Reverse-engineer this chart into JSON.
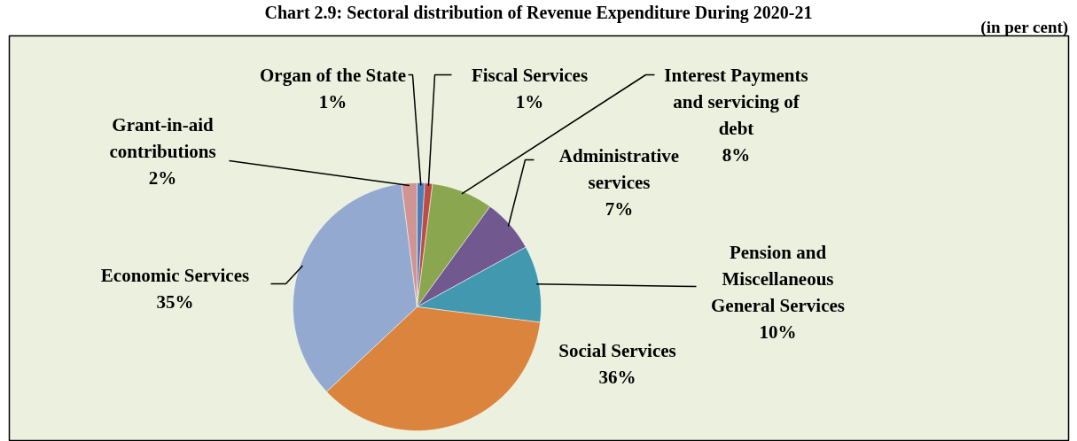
{
  "chart_data": {
    "type": "pie",
    "title": "Chart 2.9: Sectoral distribution of Revenue Expenditure During 2020-21",
    "subtitle": "(in per cent)",
    "categories": [
      "Organ of the State",
      "Fiscal Services",
      "Interest Payments and servicing of debt",
      "Administrative services",
      "Pension and Miscellaneous General Services",
      "Social Services",
      "Economic Services",
      "Grant-in-aid contributions"
    ],
    "values": [
      1,
      1,
      8,
      7,
      10,
      36,
      35,
      2
    ],
    "colors": [
      "#4a7ebb",
      "#be4b48",
      "#8aa64f",
      "#71588f",
      "#4198af",
      "#db843d",
      "#93a9cf",
      "#d09493"
    ],
    "value_labels": [
      "1%",
      "1%",
      "8%",
      "7%",
      "10%",
      "36%",
      "35%",
      "2%"
    ]
  }
}
